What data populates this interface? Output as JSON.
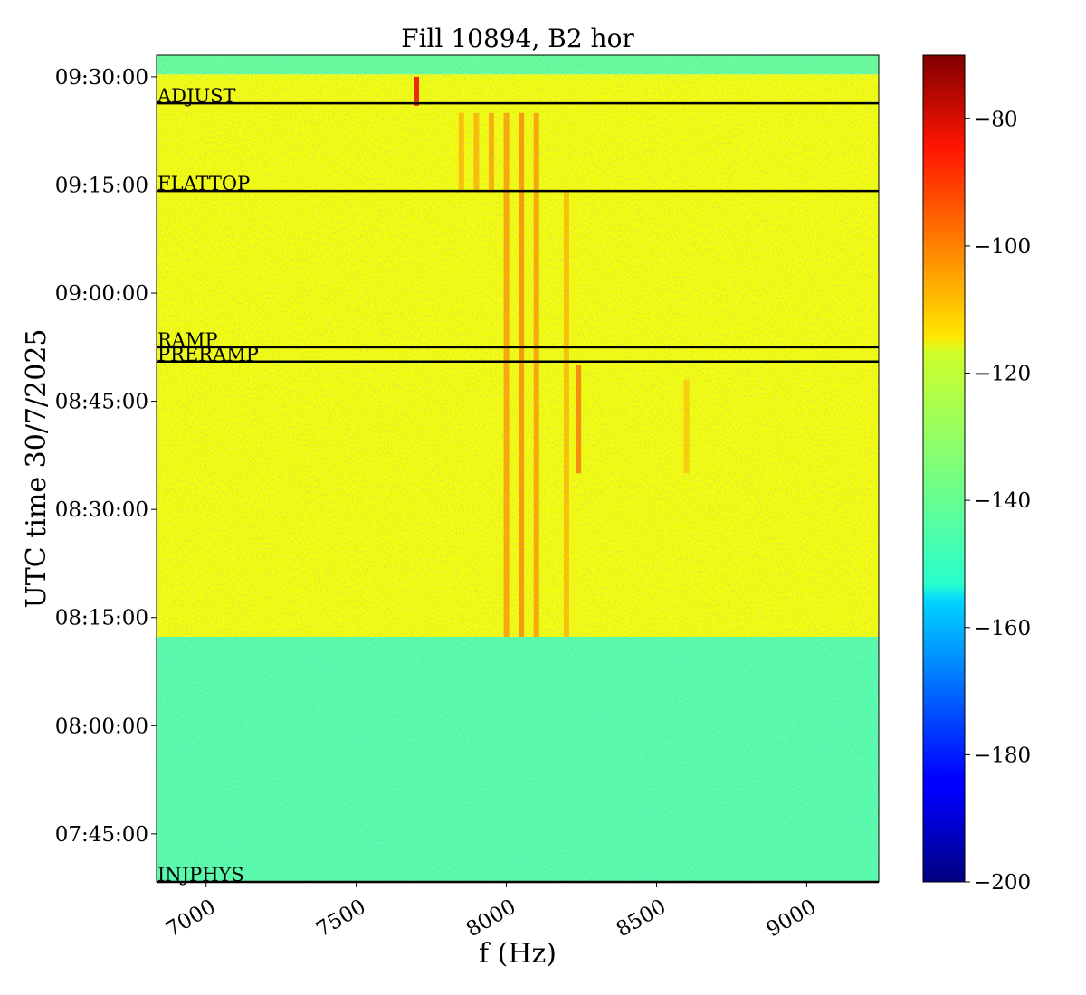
{
  "chart_data": {
    "type": "heatmap",
    "title": "Fill 10894, B2 hor",
    "xlabel": "f (Hz)",
    "ylabel": "UTC time 30/7/2025",
    "xlim": [
      6835,
      9240
    ],
    "xticks": [
      {
        "value": 7000,
        "label": "7000"
      },
      {
        "value": 7500,
        "label": "7500"
      },
      {
        "value": 8000,
        "label": "8000"
      },
      {
        "value": 8500,
        "label": "8500"
      },
      {
        "value": 9000,
        "label": "9000"
      }
    ],
    "ylim_time": [
      "07:38:20",
      "09:33:00"
    ],
    "yticks": [
      {
        "value": "09:30:00",
        "label": "09:30:00"
      },
      {
        "value": "09:15:00",
        "label": "09:15:00"
      },
      {
        "value": "09:00:00",
        "label": "09:00:00"
      },
      {
        "value": "08:45:00",
        "label": "08:45:00"
      },
      {
        "value": "08:30:00",
        "label": "08:30:00"
      },
      {
        "value": "08:15:00",
        "label": "08:15:00"
      },
      {
        "value": "08:00:00",
        "label": "08:00:00"
      },
      {
        "value": "07:45:00",
        "label": "07:45:00"
      }
    ],
    "colorbar": {
      "colormap": "jet",
      "range": [
        -200,
        -70
      ],
      "ticks": [
        {
          "value": -80,
          "label": "−80"
        },
        {
          "value": -100,
          "label": "−100"
        },
        {
          "value": -120,
          "label": "−120"
        },
        {
          "value": -140,
          "label": "−140"
        },
        {
          "value": -160,
          "label": "−160"
        },
        {
          "value": -180,
          "label": "−180"
        },
        {
          "value": -200,
          "label": "−200"
        }
      ]
    },
    "phases": [
      {
        "name": "ADJUST",
        "time": "09:26:20"
      },
      {
        "name": "FLATTOP",
        "time": "09:14:10"
      },
      {
        "name": "RAMP",
        "time": "08:52:30"
      },
      {
        "name": "PRERAMP",
        "time": "08:50:30"
      },
      {
        "name": "INJPHYS",
        "time": "07:38:20"
      }
    ],
    "background_levels": [
      {
        "from": "07:38:20",
        "to": "08:12:20",
        "level": -140
      },
      {
        "from": "08:12:20",
        "to": "09:30:20",
        "level": -120
      },
      {
        "from": "09:30:20",
        "to": "09:33:00",
        "level": -138
      }
    ],
    "spectral_lines": [
      {
        "f": 8000,
        "from": "08:12:20",
        "to": "09:25:00",
        "level": -106
      },
      {
        "f": 8050,
        "from": "08:12:20",
        "to": "09:25:00",
        "level": -104
      },
      {
        "f": 8100,
        "from": "08:12:20",
        "to": "09:25:00",
        "level": -106
      },
      {
        "f": 8200,
        "from": "08:12:20",
        "to": "09:14:10",
        "level": -110
      },
      {
        "f": 8240,
        "from": "08:35:00",
        "to": "08:50:00",
        "level": -102
      },
      {
        "f": 7950,
        "from": "09:14:10",
        "to": "09:25:00",
        "level": -107
      },
      {
        "f": 7900,
        "from": "09:14:10",
        "to": "09:25:00",
        "level": -109
      },
      {
        "f": 7850,
        "from": "09:14:10",
        "to": "09:25:00",
        "level": -110
      },
      {
        "f": 7700,
        "from": "09:26:00",
        "to": "09:30:00",
        "level": -84
      },
      {
        "f": 8600,
        "from": "08:35:00",
        "to": "08:48:00",
        "level": -112
      }
    ]
  }
}
